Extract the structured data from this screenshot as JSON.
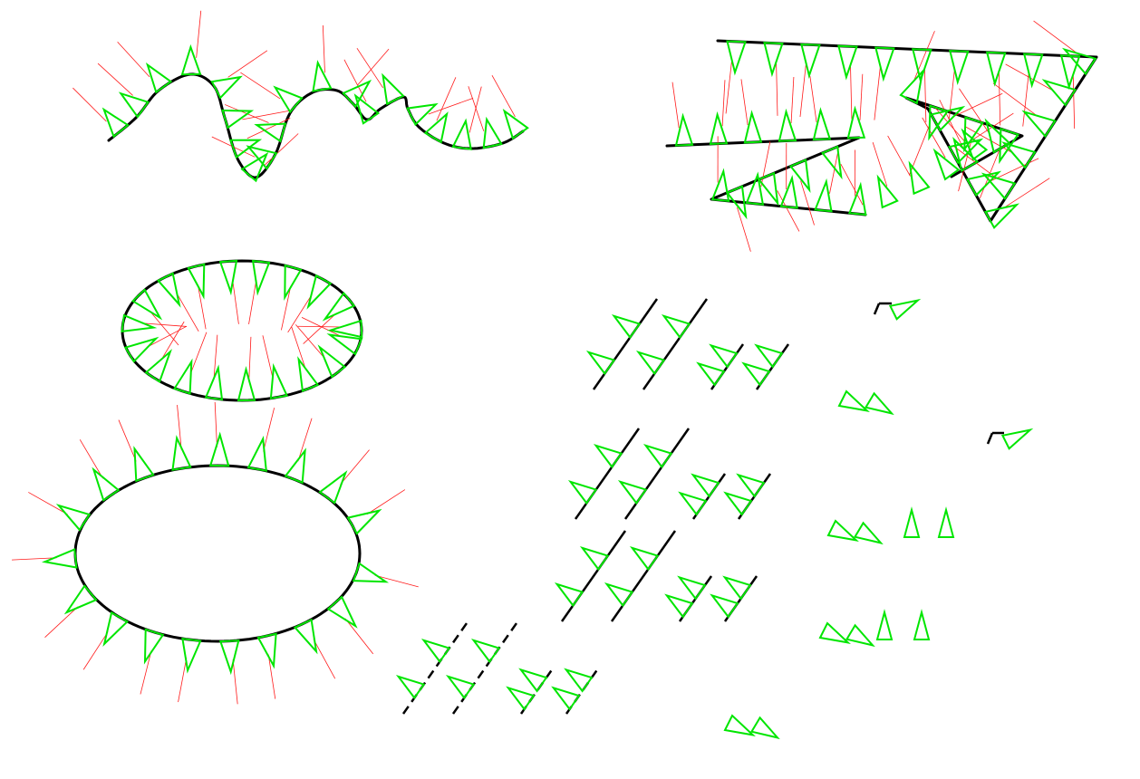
{
  "figure": {
    "background": "#ffffff",
    "colors": {
      "curve": "#000000",
      "marker": "#00e600",
      "normal": "#ff1a1a"
    },
    "panels": [
      "wavy-curve-with-markers",
      "polygon-arrow-with-markers",
      "small-ellipse-inward-markers",
      "large-ellipse-outward-markers",
      "marker-spacing-test-grid"
    ]
  }
}
